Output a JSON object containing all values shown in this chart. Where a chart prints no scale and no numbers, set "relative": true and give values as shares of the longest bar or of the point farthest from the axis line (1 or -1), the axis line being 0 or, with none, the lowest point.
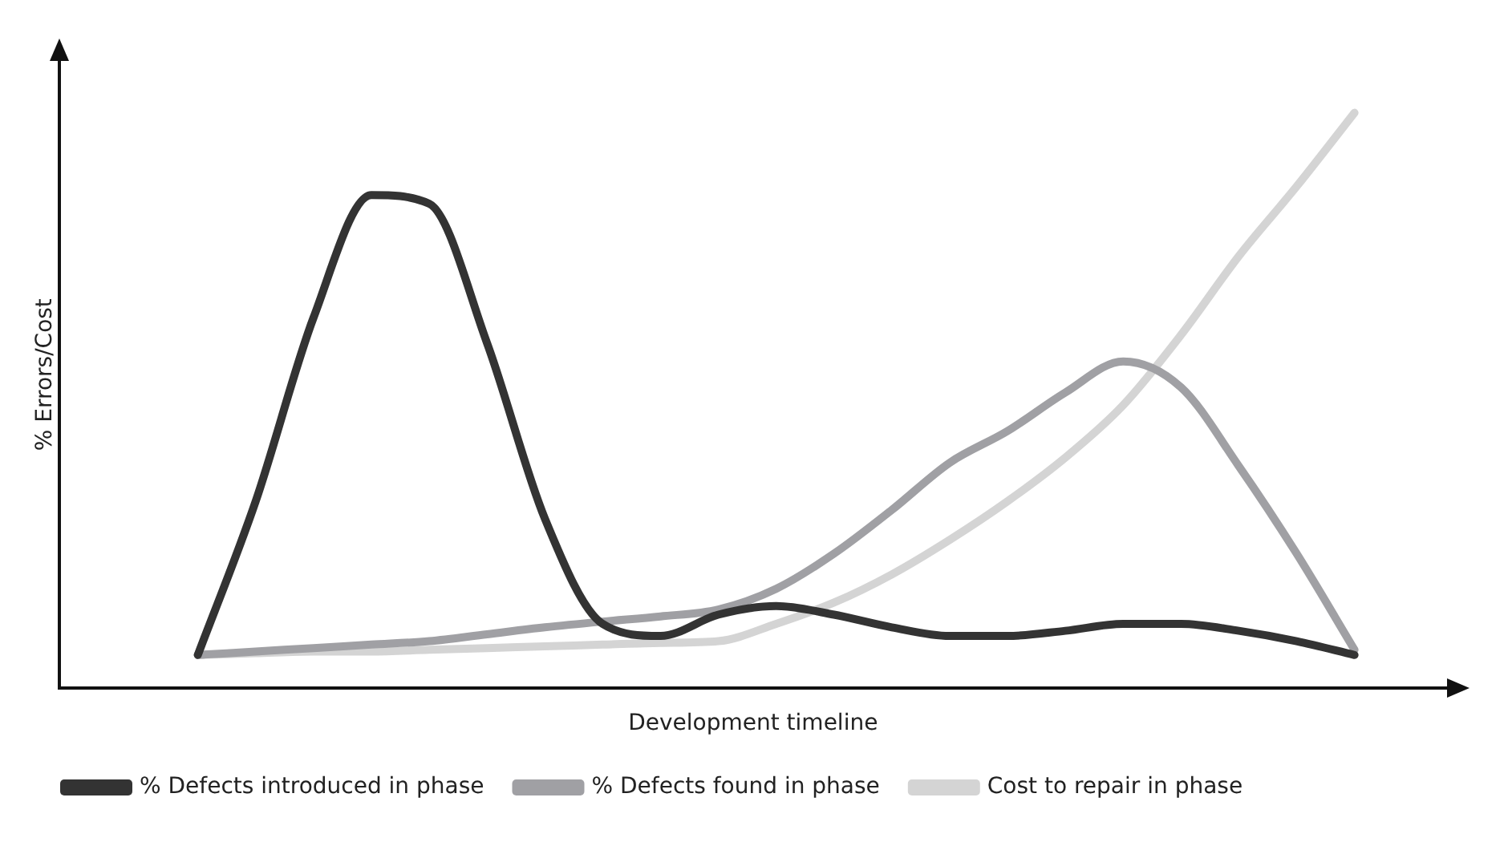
{
  "chart_data": {
    "type": "line",
    "relative": true,
    "xlabel": "Development timeline",
    "ylabel": "% Errors/Cost",
    "categories": [
      null,
      null,
      null,
      null,
      null,
      null,
      null,
      null,
      null,
      null,
      null,
      null,
      null,
      null,
      null,
      null,
      null,
      null,
      null,
      null,
      null
    ],
    "series": [
      {
        "name": "% Defects introduced in phase",
        "color": "#333333",
        "values": [
          0.058,
          0.325,
          0.644,
          0.857,
          0.842,
          0.6,
          0.295,
          0.112,
          0.091,
          0.128,
          0.143,
          0.128,
          0.106,
          0.091,
          0.091,
          0.1,
          0.112,
          0.112,
          0.1,
          0.082,
          0.058
        ]
      },
      {
        "name": "% Defects found in phase",
        "color": "#a0a0a4",
        "values": [
          0.058,
          0.064,
          0.07,
          0.076,
          0.082,
          0.094,
          0.106,
          0.116,
          0.125,
          0.137,
          0.173,
          0.234,
          0.31,
          0.392,
          0.447,
          0.514,
          0.568,
          0.523,
          0.386,
          0.234,
          0.067
        ]
      },
      {
        "name": "Cost to repair in phase",
        "color": "#d4d4d4",
        "values": [
          0.058,
          0.061,
          0.064,
          0.064,
          0.067,
          0.07,
          0.073,
          0.076,
          0.079,
          0.082,
          0.112,
          0.149,
          0.198,
          0.258,
          0.325,
          0.401,
          0.492,
          0.614,
          0.751,
          0.872,
          1.0
        ]
      }
    ],
    "grid": false,
    "legend": "bottom",
    "marker": "none",
    "line_style": "solid"
  }
}
